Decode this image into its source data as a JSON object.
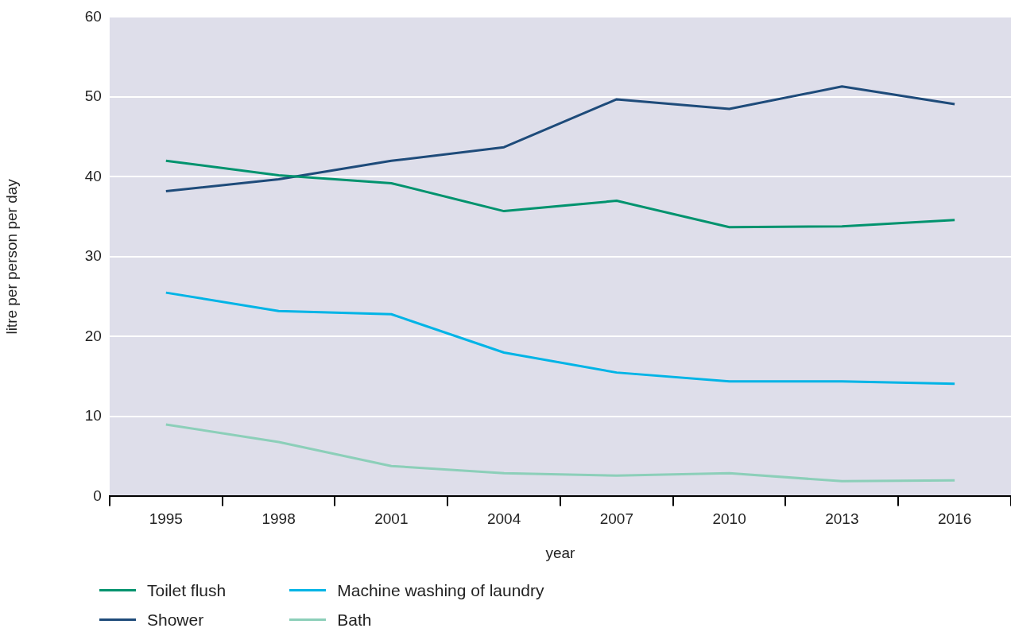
{
  "chart_data": {
    "type": "line",
    "xlabel": "year",
    "ylabel": "litre per person per day",
    "categories": [
      "1995",
      "1998",
      "2001",
      "2004",
      "2007",
      "2010",
      "2013",
      "2016"
    ],
    "series": [
      {
        "name": "Toilet flush",
        "color": "#00936e",
        "values": [
          42.0,
          40.2,
          39.2,
          35.7,
          37.0,
          33.7,
          33.8,
          34.6
        ]
      },
      {
        "name": "Shower",
        "color": "#1e4b7a",
        "values": [
          38.2,
          39.7,
          42.0,
          43.7,
          49.7,
          48.5,
          51.3,
          49.1
        ]
      },
      {
        "name": "Machine washing of laundry",
        "color": "#00b4e6",
        "values": [
          25.5,
          23.2,
          22.8,
          18.0,
          15.5,
          14.4,
          14.4,
          14.1
        ]
      },
      {
        "name": "Bath",
        "color": "#8ccfb9",
        "values": [
          9.0,
          6.8,
          3.8,
          2.9,
          2.6,
          2.9,
          1.9,
          2.0
        ]
      }
    ],
    "ylim": [
      0,
      60
    ],
    "yticks": [
      0,
      10,
      20,
      30,
      40,
      50,
      60
    ],
    "grid": "y",
    "legend": "bottom left",
    "marker": "none",
    "line_style": "solid"
  }
}
